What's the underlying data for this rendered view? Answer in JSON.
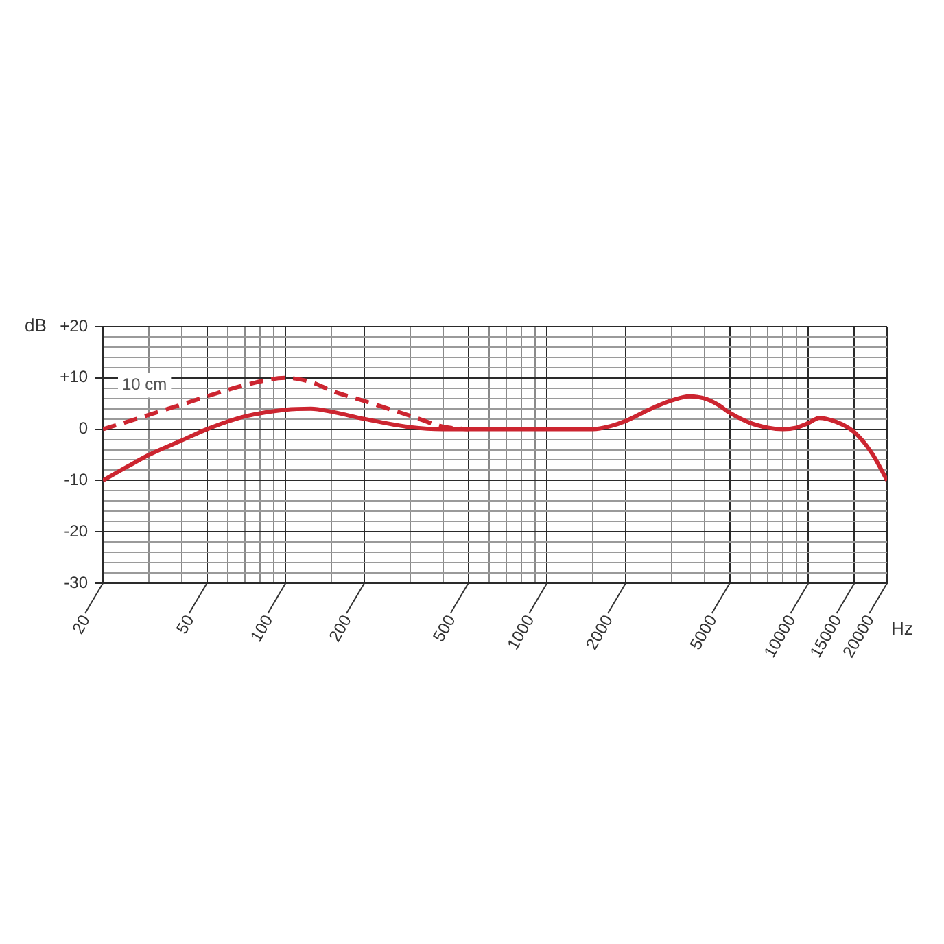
{
  "chart_data": {
    "type": "line",
    "xlabel": "Hz",
    "ylabel": "dB",
    "log": "x",
    "grid": true,
    "xlim": [
      20,
      20000
    ],
    "xticks": [
      20,
      {
        "value": 30,
        "label": null
      },
      {
        "value": 40,
        "label": null
      },
      50,
      {
        "value": 60,
        "label": null
      },
      {
        "value": 70,
        "label": null
      },
      {
        "value": 80,
        "label": null
      },
      {
        "value": 90,
        "label": null
      },
      100,
      {
        "value": 150,
        "label": null
      },
      200,
      {
        "value": 300,
        "label": null
      },
      {
        "value": 400,
        "label": null
      },
      500,
      {
        "value": 600,
        "label": null
      },
      {
        "value": 700,
        "label": null
      },
      {
        "value": 800,
        "label": null
      },
      {
        "value": 900,
        "label": null
      },
      1000,
      {
        "value": 1500,
        "label": null
      },
      2000,
      {
        "value": 3000,
        "label": null
      },
      {
        "value": 4000,
        "label": null
      },
      5000,
      {
        "value": 6000,
        "label": null
      },
      {
        "value": 7000,
        "label": null
      },
      {
        "value": 8000,
        "label": null
      },
      {
        "value": 9000,
        "label": null
      },
      10000,
      15000,
      20000
    ],
    "ylim": [
      -30,
      20
    ],
    "yticks": [
      -30,
      {
        "value": -28,
        "label": null
      },
      {
        "value": -26,
        "label": null
      },
      {
        "value": -24,
        "label": null
      },
      {
        "value": -22,
        "label": null
      },
      -20,
      {
        "value": -18,
        "label": null
      },
      {
        "value": -16,
        "label": null
      },
      {
        "value": -14,
        "label": null
      },
      {
        "value": -12,
        "label": null
      },
      -10,
      {
        "value": -8,
        "label": null
      },
      {
        "value": -6,
        "label": null
      },
      {
        "value": -4,
        "label": null
      },
      {
        "value": -2,
        "label": null
      },
      0,
      {
        "value": 2,
        "label": null
      },
      {
        "value": 4,
        "label": null
      },
      {
        "value": 6,
        "label": null
      },
      {
        "value": 8,
        "label": null
      },
      {
        "value": 10,
        "label": "+10"
      },
      {
        "value": 12,
        "label": null
      },
      {
        "value": 14,
        "label": null
      },
      {
        "value": 16,
        "label": null
      },
      {
        "value": 18,
        "label": null
      },
      {
        "value": 20,
        "label": "+20"
      }
    ],
    "series": [
      {
        "color": "#cc2530",
        "line_style": "solid",
        "x": [
          20,
          25,
          30,
          40,
          50,
          70,
          100,
          125,
          150,
          200,
          300,
          400,
          500,
          700,
          1000,
          1500,
          1750,
          2000,
          2500,
          3000,
          3500,
          4000,
          4500,
          5000,
          6000,
          7000,
          8000,
          9000,
          10000,
          11000,
          12500,
          15000,
          17500,
          20000
        ],
        "values": [
          -10,
          -7.2,
          -5,
          -2.2,
          0,
          2.5,
          3.8,
          4,
          3.4,
          2,
          0.4,
          0,
          0,
          0,
          0,
          0,
          0.6,
          1.6,
          4,
          5.6,
          6.4,
          6,
          4.8,
          3.2,
          1.2,
          0.3,
          0,
          0.3,
          1.2,
          2.2,
          1.6,
          -0.6,
          -4.7,
          -10
        ]
      },
      {
        "name": "10 cm",
        "color": "#cc2530",
        "line_style": "dashed",
        "x": [
          20,
          25,
          30,
          40,
          50,
          70,
          100,
          125,
          150,
          200,
          300,
          400,
          500
        ],
        "values": [
          0,
          1.5,
          2.8,
          4.8,
          6.4,
          8.6,
          10,
          9.2,
          7.5,
          5.5,
          2.6,
          0.5,
          0
        ]
      }
    ]
  }
}
